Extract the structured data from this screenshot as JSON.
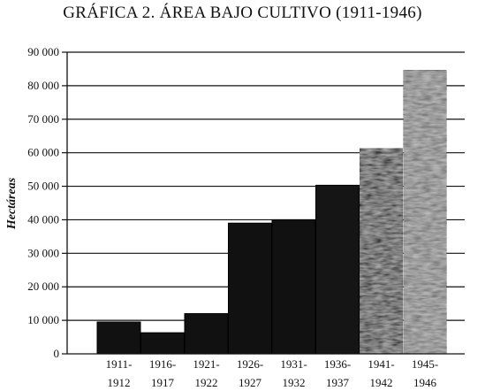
{
  "chart_data": {
    "type": "bar",
    "title": "GRÁFICA 2. ÁREA BAJO CULTIVO (1911-1946)",
    "xlabel": "",
    "ylabel": "Hectáreas",
    "categories": [
      [
        "1911-",
        "1912"
      ],
      [
        "1916-",
        "1917"
      ],
      [
        "1921-",
        "1922"
      ],
      [
        "1926-",
        "1927"
      ],
      [
        "1931-",
        "1932"
      ],
      [
        "1936-",
        "1937"
      ],
      [
        "1941-",
        "1942"
      ],
      [
        "1945-",
        "1946"
      ]
    ],
    "values": [
      9500,
      6300,
      12000,
      39000,
      40000,
      50300,
      61300,
      84700
    ],
    "ylim": [
      0,
      90000
    ],
    "yticks": [
      0,
      10000,
      20000,
      30000,
      40000,
      50000,
      60000,
      70000,
      80000,
      90000
    ],
    "ytick_labels": [
      "0",
      "10 000",
      "20 000",
      "30 000",
      "40 000",
      "50 000",
      "60 000",
      "70 000",
      "80 000",
      "90 000"
    ],
    "grid": true,
    "legend": "none",
    "bar_colors": [
      "#111111",
      "#111111",
      "#111111",
      "#111111",
      "#111111",
      "#151515",
      "#3a3a3a",
      "#7a7a7a"
    ]
  }
}
